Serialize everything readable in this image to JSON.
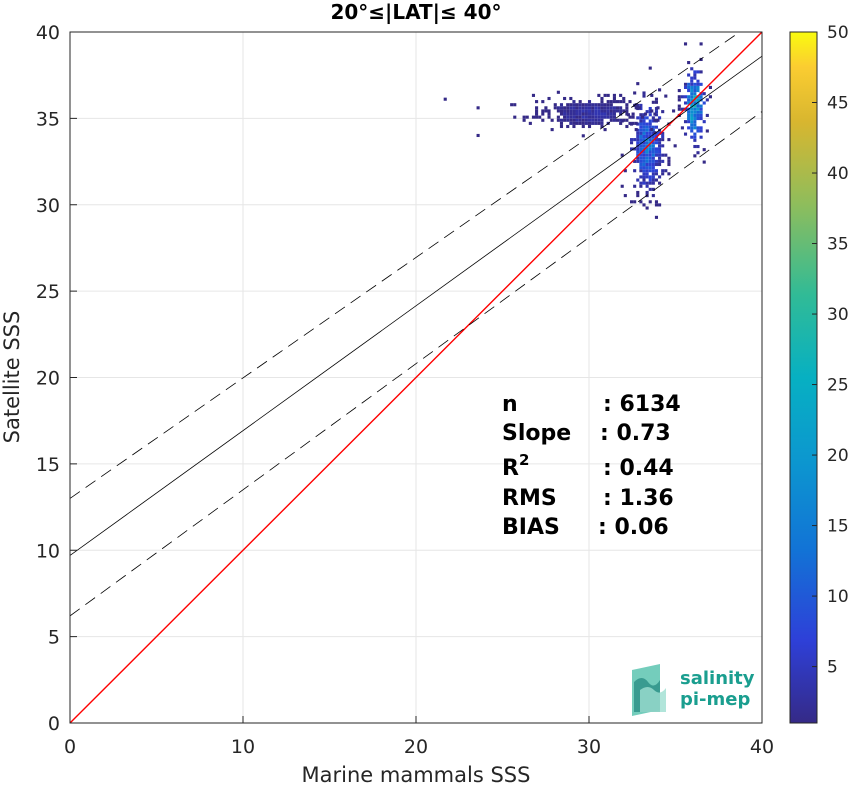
{
  "chart_data": {
    "type": "scatter",
    "render": "2d-density-histogram",
    "title": "20°≤|LAT|≤ 40°",
    "xlabel": "Marine mammals SSS",
    "ylabel": "Satellite SSS",
    "xlim": [
      0,
      40
    ],
    "ylim": [
      0,
      40
    ],
    "xticks": [
      "0",
      "10",
      "20",
      "30",
      "40"
    ],
    "yticks": [
      "0",
      "5",
      "10",
      "15",
      "20",
      "25",
      "30",
      "35",
      "40"
    ],
    "grid": true,
    "colorbar": {
      "colormap": "parula",
      "range": [
        1,
        50
      ],
      "ticks": [
        "5",
        "10",
        "15",
        "20",
        "25",
        "30",
        "35",
        "40",
        "45",
        "50"
      ],
      "position": "right"
    },
    "lines": [
      {
        "name": "one-to-one",
        "style": "solid",
        "color": "#ff0000",
        "x": [
          0,
          40
        ],
        "y": [
          0,
          40
        ]
      },
      {
        "name": "regression",
        "style": "solid",
        "color": "#000000",
        "x": [
          0,
          40
        ],
        "y": [
          9.7,
          38.6
        ]
      },
      {
        "name": "upper-bound",
        "style": "dashed",
        "color": "#000000",
        "x": [
          0,
          40
        ],
        "y": [
          13.0,
          40.9
        ]
      },
      {
        "name": "lower-bound",
        "style": "dashed",
        "color": "#000000",
        "x": [
          0,
          40
        ],
        "y": [
          6.2,
          35.4
        ]
      }
    ],
    "clusters": [
      {
        "x_center": 33.3,
        "y_center": 33.5,
        "x_spread": 0.55,
        "y_spread": 1.5,
        "max_count": 12
      },
      {
        "x_center": 36.0,
        "y_center": 35.8,
        "x_spread": 0.35,
        "y_spread": 1.2,
        "max_count": 20
      },
      {
        "x_center": 30.0,
        "y_center": 35.4,
        "x_spread": 1.7,
        "y_spread": 0.5,
        "max_count": 3
      }
    ],
    "outliers": [
      {
        "x": 21.6,
        "y": 36.2
      },
      {
        "x": 23.5,
        "y": 35.7
      },
      {
        "x": 23.5,
        "y": 34.1
      }
    ],
    "stats": {
      "n_label": "n",
      "n_value": ": 6134",
      "slope_label": "Slope",
      "slope_value": ": 0.73",
      "r2_label": "R",
      "r2_sup": "2",
      "r2_value": ": 0.44",
      "rms_label": "RMS",
      "rms_value": ": 1.36",
      "bias_label": "BIAS",
      "bias_value": ": 0.06"
    }
  },
  "logo": {
    "line1": "salinity",
    "line2": "pi-mep"
  }
}
